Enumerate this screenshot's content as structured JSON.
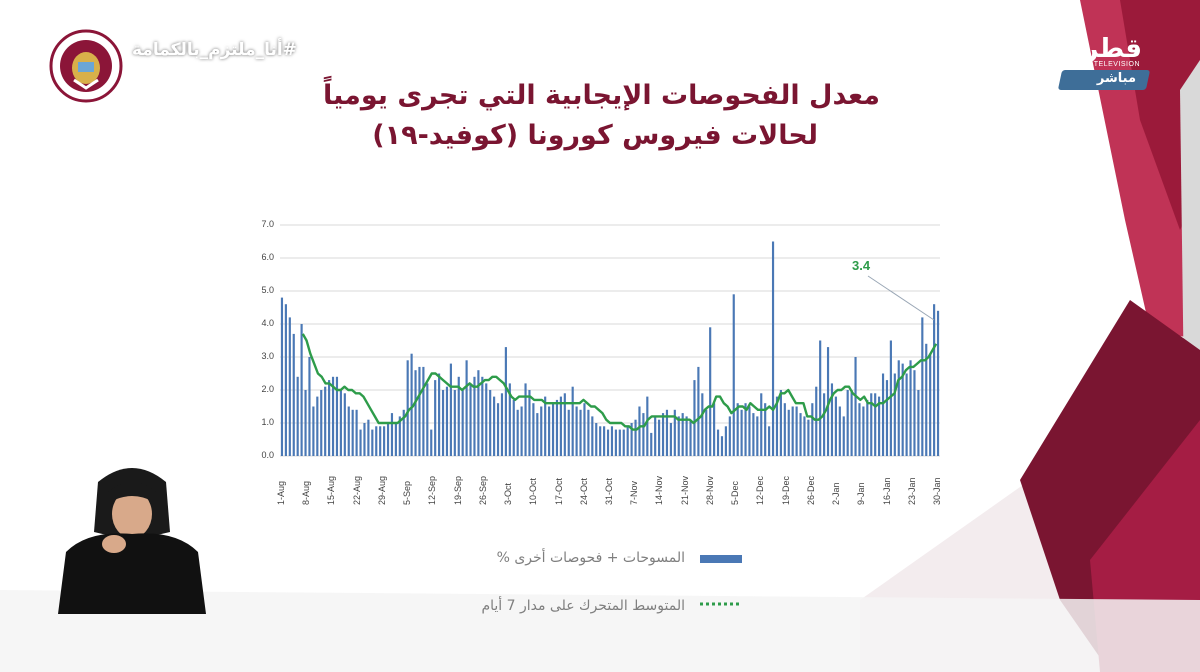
{
  "title": {
    "line1": "معدل الفحوصات الإيجابية التي تجرى يومياً",
    "line2": "لحالات فيروس كورونا (كوفيد-١٩)"
  },
  "overlay": {
    "hashtag": "#أنا_ملتزم_بالكمامة",
    "channel_logo": "قطر",
    "channel_sub": "TELEVISION",
    "live_label": "مباشر"
  },
  "colors": {
    "title": "#7a1531",
    "bars": "#4a78b5",
    "line": "#2e9c4a",
    "maroon": "#8b1538"
  },
  "chart_data": {
    "type": "bar",
    "y_ticks": [
      "0.0",
      "1.0",
      "2.0",
      "3.0",
      "4.0",
      "5.0",
      "6.0",
      "7.0"
    ],
    "ylim": [
      0,
      7
    ],
    "grid": true,
    "x_tick_labels": [
      "1-Aug",
      "8-Aug",
      "15-Aug",
      "22-Aug",
      "29-Aug",
      "5-Sep",
      "12-Sep",
      "19-Sep",
      "26-Sep",
      "3-Oct",
      "10-Oct",
      "17-Oct",
      "24-Oct",
      "31-Oct",
      "7-Nov",
      "14-Nov",
      "21-Nov",
      "28-Nov",
      "5-Dec",
      "12-Dec",
      "19-Dec",
      "26-Dec",
      "2-Jan",
      "9-Jan",
      "16-Jan",
      "23-Jan",
      "30-Jan"
    ],
    "series": [
      {
        "name": "المسوحات + فحوصات أخرى %",
        "type": "bar",
        "values": [
          4.8,
          4.6,
          4.2,
          3.7,
          2.4,
          4.0,
          2.0,
          3.0,
          1.5,
          1.8,
          2.0,
          2.1,
          2.3,
          2.4,
          2.4,
          2.0,
          1.9,
          1.5,
          1.4,
          1.4,
          0.8,
          1.0,
          1.1,
          0.8,
          0.9,
          0.9,
          0.9,
          1.0,
          1.3,
          1.0,
          1.2,
          1.4,
          2.9,
          3.1,
          2.6,
          2.7,
          2.7,
          2.2,
          0.8,
          2.3,
          2.5,
          2.0,
          2.1,
          2.8,
          2.0,
          2.4,
          2.0,
          2.9,
          2.2,
          2.4,
          2.6,
          2.4,
          2.2,
          2.0,
          1.8,
          1.6,
          1.9,
          3.3,
          2.2,
          1.7,
          1.4,
          1.5,
          2.2,
          2.0,
          1.6,
          1.3,
          1.5,
          1.8,
          1.5,
          1.6,
          1.7,
          1.8,
          1.9,
          1.4,
          2.1,
          1.5,
          1.4,
          1.6,
          1.4,
          1.2,
          1.0,
          0.9,
          0.9,
          0.8,
          0.9,
          0.8,
          0.8,
          0.8,
          0.9,
          1.0,
          1.1,
          1.5,
          1.3,
          1.8,
          0.7,
          1.2,
          1.1,
          1.3,
          1.4,
          1.0,
          1.4,
          1.2,
          1.3,
          1.2,
          1.1,
          2.3,
          2.7,
          1.9,
          1.4,
          3.9,
          1.6,
          0.8,
          0.6,
          0.9,
          1.2,
          4.9,
          1.6,
          1.4,
          1.6,
          1.5,
          1.3,
          1.2,
          1.9,
          1.6,
          0.9,
          6.5,
          1.8,
          2.0,
          1.6,
          1.4,
          1.5,
          1.5,
          1.3,
          1.2,
          1.1,
          1.6,
          2.1,
          3.5,
          1.9,
          3.3,
          2.2,
          1.8,
          1.5,
          1.2,
          2.0,
          2.0,
          3.0,
          1.6,
          1.5,
          1.7,
          1.9,
          1.9,
          1.8,
          2.5,
          2.3,
          3.5,
          2.5,
          2.9,
          2.8,
          2.5,
          2.9,
          2.6,
          2.0,
          4.2,
          3.4,
          3.1,
          4.6,
          4.4
        ]
      },
      {
        "name": "المتوسط المتحرك على مدار 7 أيام",
        "type": "line",
        "values": [
          3.7,
          3.5,
          3.1,
          2.8,
          2.5,
          2.4,
          2.2,
          2.2,
          2.1,
          2.0,
          2.0,
          2.1,
          2.0,
          2.0,
          1.9,
          1.9,
          1.8,
          1.6,
          1.4,
          1.2,
          1.0,
          1.0,
          1.0,
          1.0,
          1.0,
          1.0,
          1.1,
          1.2,
          1.4,
          1.5,
          1.7,
          1.9,
          2.1,
          2.3,
          2.5,
          2.5,
          2.4,
          2.3,
          2.2,
          2.1,
          2.1,
          2.1,
          2.0,
          2.1,
          2.2,
          2.1,
          2.1,
          2.2,
          2.3,
          2.3,
          2.4,
          2.4,
          2.3,
          2.2,
          2.0,
          1.8,
          1.7,
          1.8,
          1.8,
          1.8,
          1.8,
          1.7,
          1.7,
          1.7,
          1.6,
          1.6,
          1.6,
          1.6,
          1.6,
          1.6,
          1.6,
          1.6,
          1.6,
          1.6,
          1.7,
          1.6,
          1.5,
          1.5,
          1.4,
          1.3,
          1.1,
          1.0,
          1.0,
          1.0,
          1.0,
          0.9,
          0.9,
          0.8,
          0.8,
          0.9,
          0.9,
          1.1,
          1.2,
          1.2,
          1.2,
          1.2,
          1.2,
          1.2,
          1.2,
          1.1,
          1.1,
          1.1,
          1.1,
          1.0,
          1.1,
          1.2,
          1.4,
          1.5,
          1.5,
          1.8,
          1.8,
          1.6,
          1.5,
          1.3,
          1.4,
          1.5,
          1.5,
          1.4,
          1.6,
          1.5,
          1.4,
          1.4,
          1.4,
          1.5,
          1.4,
          1.6,
          1.9,
          1.9,
          2.0,
          1.8,
          1.6,
          1.6,
          1.6,
          1.2,
          1.2,
          1.1,
          1.1,
          1.2,
          1.4,
          1.7,
          1.9,
          2.0,
          2.0,
          2.1,
          2.1,
          1.9,
          1.8,
          1.7,
          1.8,
          1.6,
          1.6,
          1.5,
          1.6,
          1.6,
          1.7,
          1.8,
          1.9,
          2.3,
          2.4,
          2.6,
          2.7,
          2.7,
          2.8,
          2.9,
          2.9,
          3.0,
          3.2,
          3.4
        ]
      }
    ],
    "annotation": "3.4"
  }
}
